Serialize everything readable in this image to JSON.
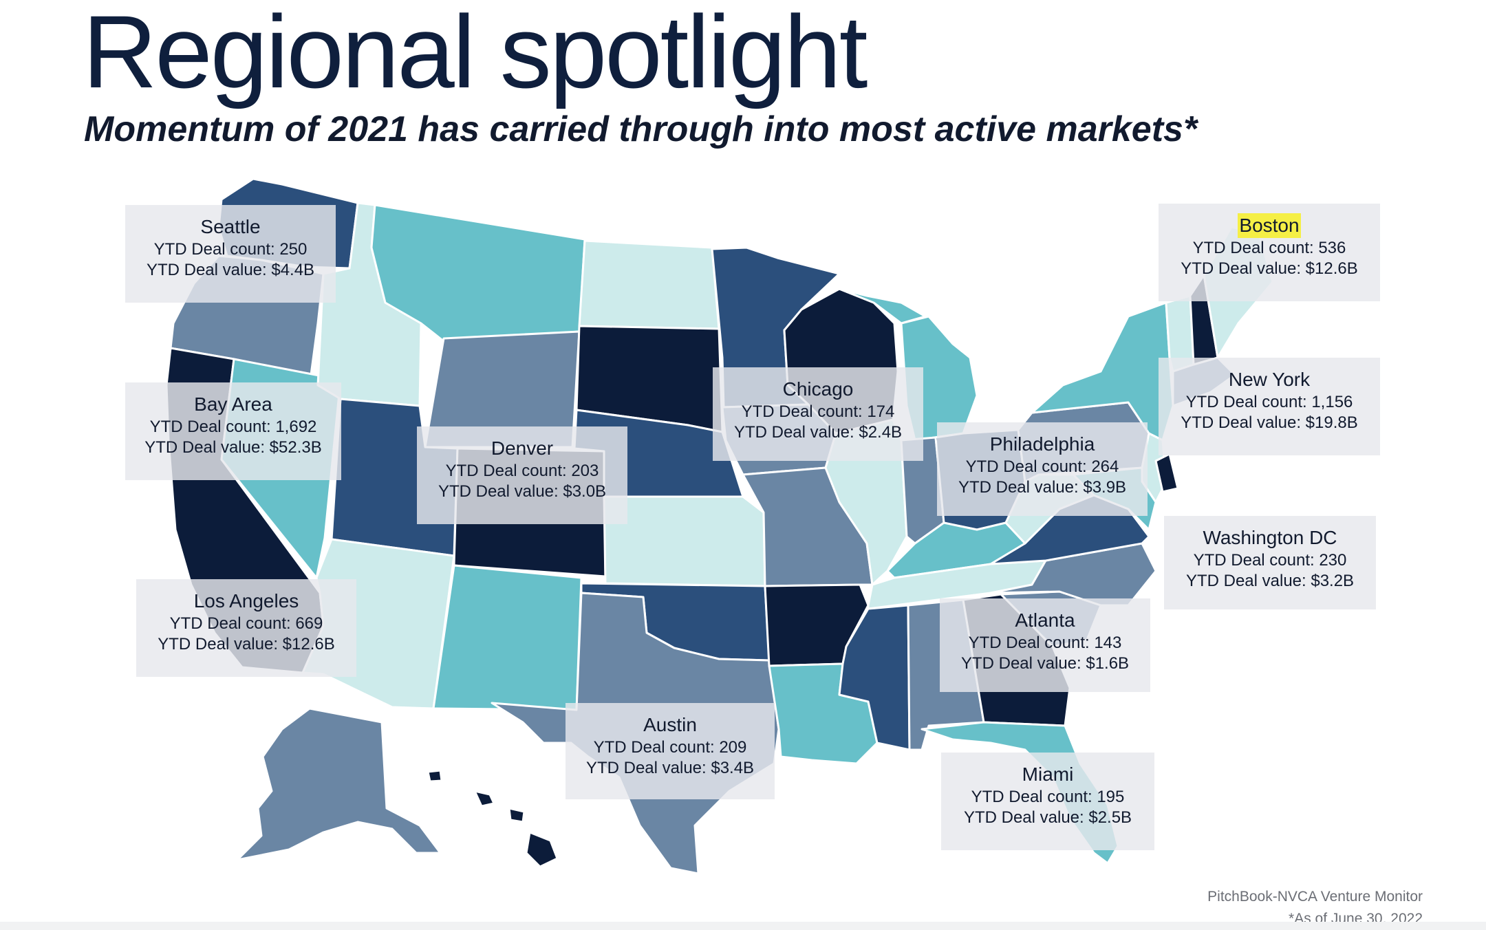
{
  "header": {
    "title": "Regional spotlight",
    "subtitle": "Momentum of 2021 has carried through into most active markets*"
  },
  "colors": {
    "darkest": "#0c1c3a",
    "dark": "#2b4f7c",
    "medium": "#6a86a4",
    "teal": "#67c0c9",
    "light": "#cdebeb",
    "highlight": "#f5ef45"
  },
  "regions": [
    {
      "city": "Seattle",
      "deal_count_label": "YTD Deal count: 250",
      "deal_value_label": "YTD Deal value: $4.4B",
      "highlight": false
    },
    {
      "city": "Bay Area",
      "deal_count_label": "YTD Deal count: 1,692",
      "deal_value_label": "YTD Deal value: $52.3B",
      "highlight": false
    },
    {
      "city": "Los Angeles",
      "deal_count_label": "YTD Deal count: 669",
      "deal_value_label": "YTD Deal value: $12.6B",
      "highlight": false
    },
    {
      "city": "Denver",
      "deal_count_label": "YTD Deal count: 203",
      "deal_value_label": "YTD Deal value: $3.0B",
      "highlight": false
    },
    {
      "city": "Chicago",
      "deal_count_label": "YTD Deal count: 174",
      "deal_value_label": "YTD Deal value: $2.4B",
      "highlight": false
    },
    {
      "city": "Austin",
      "deal_count_label": "YTD Deal count: 209",
      "deal_value_label": "YTD Deal value: $3.4B",
      "highlight": false
    },
    {
      "city": "Philadelphia",
      "deal_count_label": "YTD Deal count: 264",
      "deal_value_label": "YTD Deal value: $3.9B",
      "highlight": false
    },
    {
      "city": "Atlanta",
      "deal_count_label": "YTD Deal count: 143",
      "deal_value_label": "YTD Deal value: $1.6B",
      "highlight": false
    },
    {
      "city": "Miami",
      "deal_count_label": "YTD Deal count: 195",
      "deal_value_label": "YTD Deal value: $2.5B",
      "highlight": false
    },
    {
      "city": "Boston",
      "deal_count_label": "YTD Deal count: 536",
      "deal_value_label": "YTD Deal value: $12.6B",
      "highlight": true
    },
    {
      "city": "New York",
      "deal_count_label": "YTD Deal count: 1,156",
      "deal_value_label": "YTD Deal value: $19.8B",
      "highlight": false
    },
    {
      "city": "Washington DC",
      "deal_count_label": "YTD Deal count: 230",
      "deal_value_label": "YTD Deal value: $3.2B",
      "highlight": false
    }
  ],
  "footer": {
    "source": "PitchBook-NVCA Venture Monitor",
    "note": "*As of June 30, 2022"
  }
}
